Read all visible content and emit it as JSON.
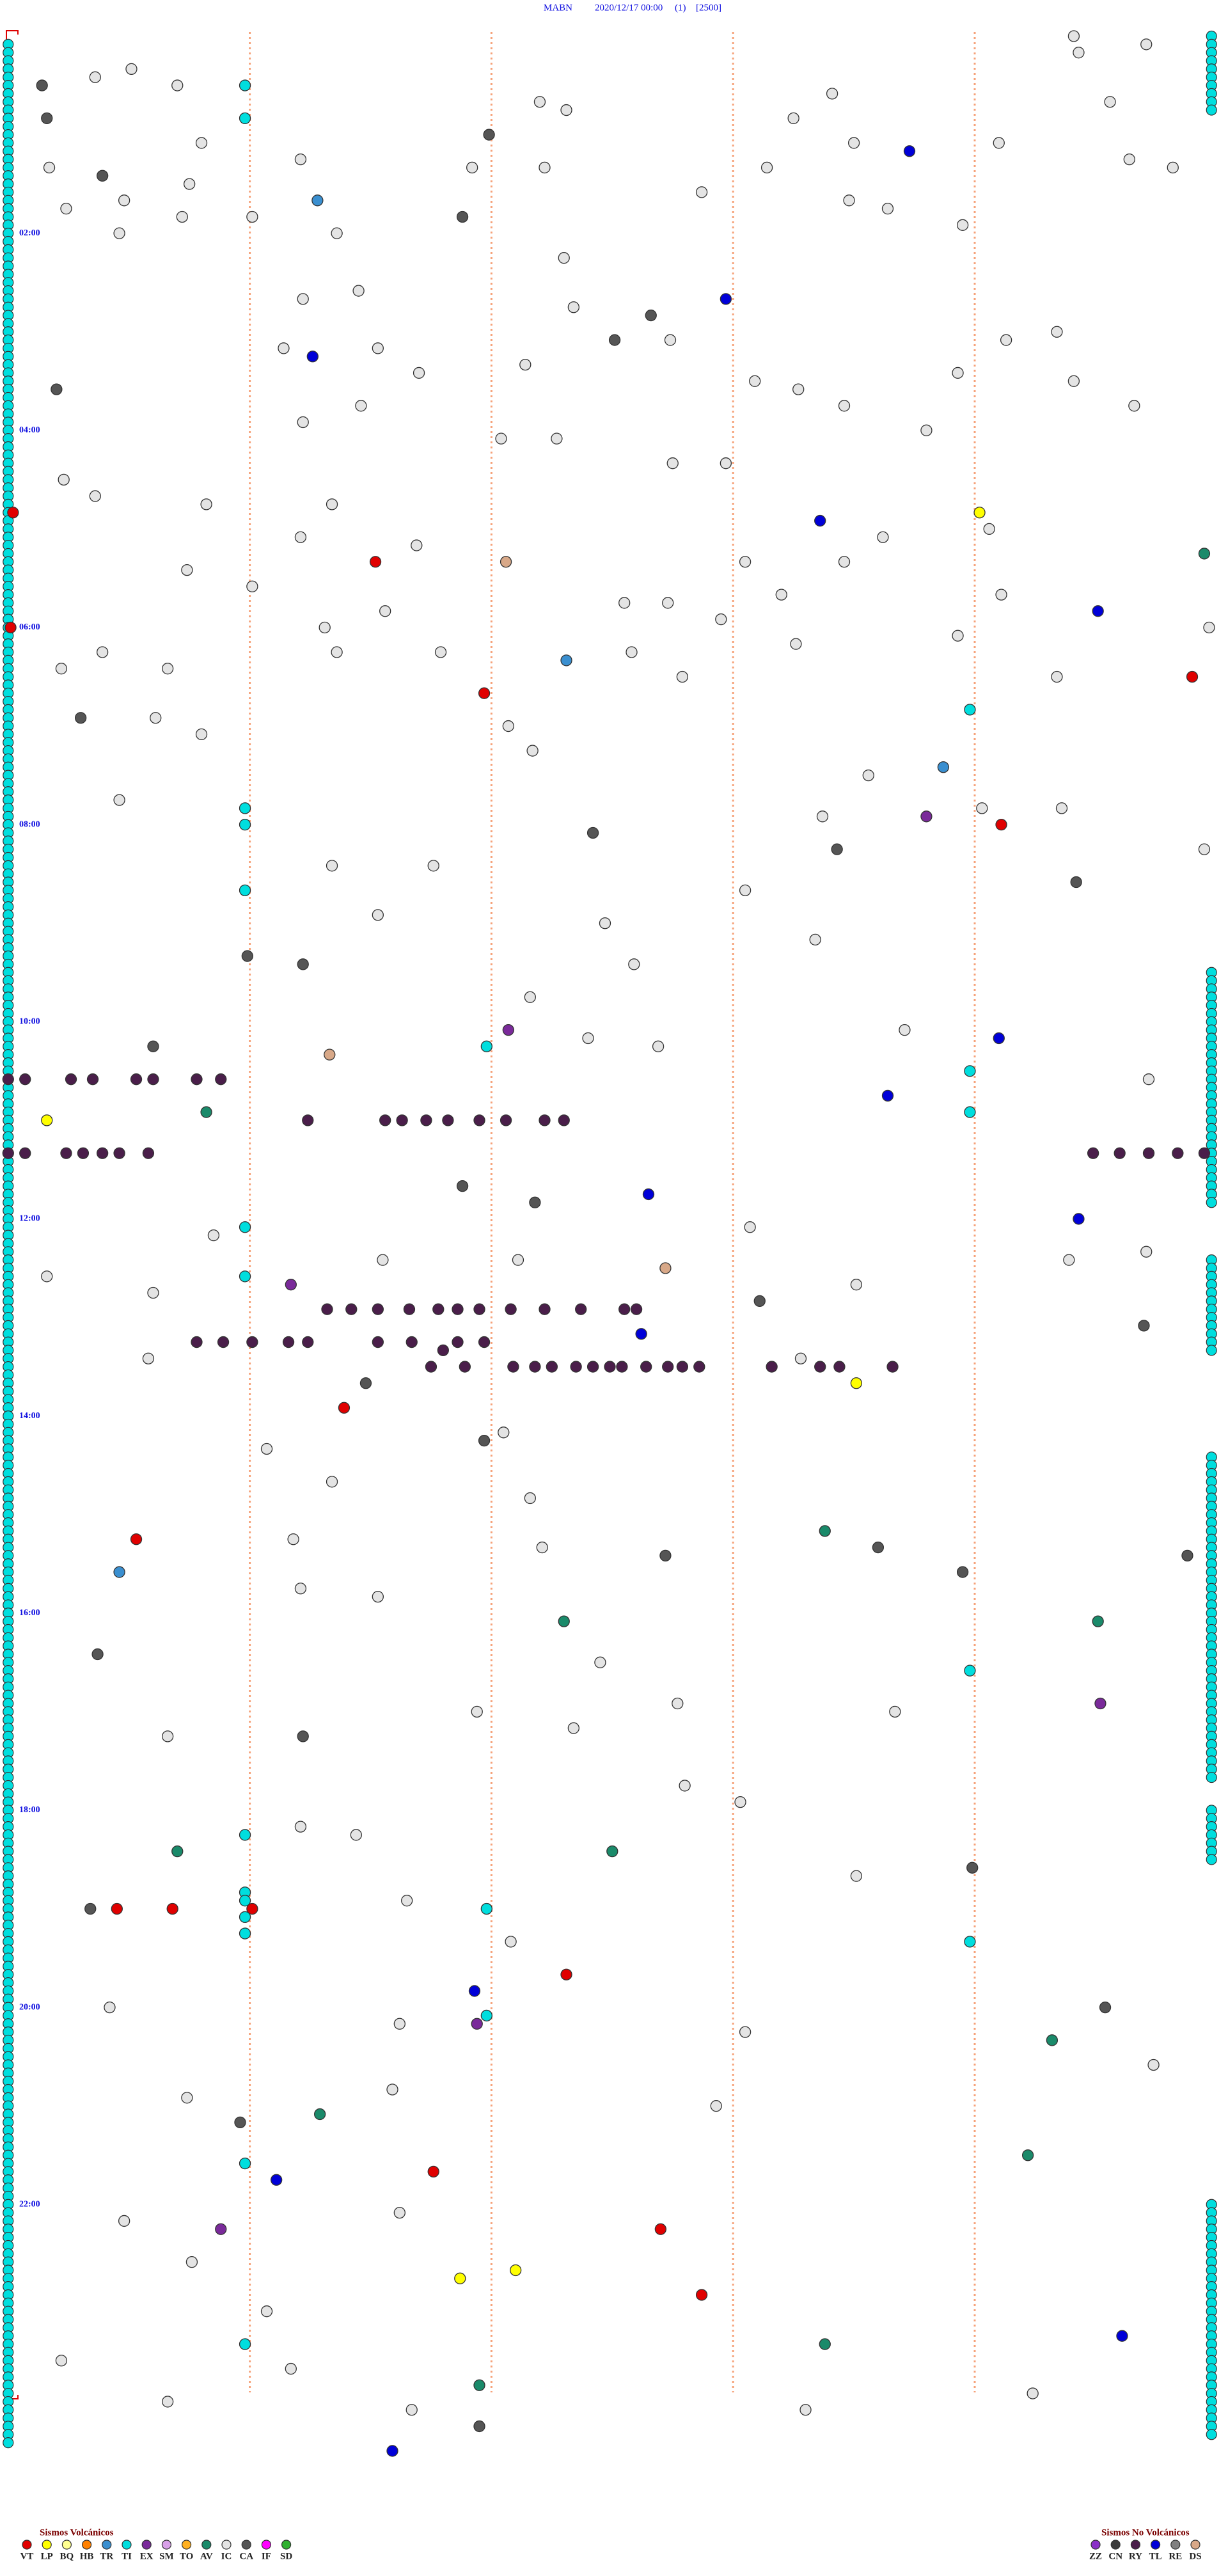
{
  "header": {
    "station": "MABN",
    "datetime": "2020/12/17 00:00",
    "channel": "(1)",
    "gain": "[2500]"
  },
  "time_labels": [
    {
      "row": 24,
      "label": "02:00"
    },
    {
      "row": 48,
      "label": "04:00"
    },
    {
      "row": 72,
      "label": "06:00"
    },
    {
      "row": 96,
      "label": "08:00"
    },
    {
      "row": 120,
      "label": "10:00"
    },
    {
      "row": 144,
      "label": "12:00"
    },
    {
      "row": 168,
      "label": "14:00"
    },
    {
      "row": 192,
      "label": "16:00"
    },
    {
      "row": 216,
      "label": "18:00"
    },
    {
      "row": 240,
      "label": "20:00"
    },
    {
      "row": 264,
      "label": "22:00"
    }
  ],
  "legend_volcanic": {
    "title": "Sismos Volcánicos",
    "items": [
      {
        "code": "VT",
        "color": "#e00000"
      },
      {
        "code": "LP",
        "color": "#ffff00"
      },
      {
        "code": "BQ",
        "color": "#ffff90"
      },
      {
        "code": "HB",
        "color": "#ff8000"
      },
      {
        "code": "TR",
        "color": "#3a8fd0"
      },
      {
        "code": "TI",
        "color": "#00dede"
      },
      {
        "code": "EX",
        "color": "#7a2a9a"
      },
      {
        "code": "SM",
        "color": "#d8a0e8"
      },
      {
        "code": "TO",
        "color": "#ffb020"
      },
      {
        "code": "AV",
        "color": "#1a8a6a"
      },
      {
        "code": "IC",
        "color": "#e4e4e4"
      },
      {
        "code": "CA",
        "color": "#555555"
      },
      {
        "code": "IF",
        "color": "#ff00ff"
      },
      {
        "code": "SD",
        "color": "#30b030"
      }
    ]
  },
  "legend_nonvolcanic": {
    "title": "Sismos No Volcánicos",
    "items": [
      {
        "code": "ZZ",
        "color": "#8a30c8"
      },
      {
        "code": "CN",
        "color": "#3a3a3a"
      },
      {
        "code": "RY",
        "color": "#4a1e4a"
      },
      {
        "code": "TL",
        "color": "#0000d8"
      },
      {
        "code": "RE",
        "color": "#808080"
      },
      {
        "code": "DS",
        "color": "#d8a888"
      }
    ]
  },
  "ti_columns": [
    {
      "minute": 0,
      "rows": [
        [
          1,
          293
        ]
      ]
    },
    {
      "minute": 4.98,
      "rows": [
        [
          0,
          9
        ],
        [
          114,
          142
        ],
        [
          149,
          160
        ],
        [
          173,
          212
        ],
        [
          216,
          222
        ],
        [
          264,
          292
        ]
      ]
    }
  ],
  "events": [
    [
      6,
      0.14,
      "CA"
    ],
    [
      10,
      0.16,
      "CA"
    ],
    [
      12,
      1.99,
      "CA"
    ],
    [
      14,
      3.73,
      "TL"
    ],
    [
      17,
      0.39,
      "CA"
    ],
    [
      20,
      1.28,
      "TR"
    ],
    [
      22,
      1.88,
      "CA"
    ],
    [
      32,
      2.97,
      "TL"
    ],
    [
      34,
      2.66,
      "CA"
    ],
    [
      37,
      2.51,
      "CA"
    ],
    [
      39,
      1.26,
      "TL"
    ],
    [
      43,
      0.2,
      "CA"
    ],
    [
      58,
      0.02,
      "VT"
    ],
    [
      64,
      1.52,
      "VT"
    ],
    [
      64,
      2.06,
      "DS"
    ],
    [
      59,
      3.36,
      "TL"
    ],
    [
      58,
      4.02,
      "LP"
    ],
    [
      63,
      4.95,
      "AV"
    ],
    [
      70,
      4.51,
      "TL"
    ],
    [
      72,
      0.01,
      "VT"
    ],
    [
      78,
      4.9,
      "VT"
    ],
    [
      76,
      2.31,
      "TR"
    ],
    [
      80,
      1.97,
      "VT"
    ],
    [
      83,
      0.3,
      "CA"
    ],
    [
      89,
      3.87,
      "TR"
    ],
    [
      95,
      3.8,
      "EX"
    ],
    [
      96,
      4.11,
      "VT"
    ],
    [
      97,
      2.42,
      "CA"
    ],
    [
      99,
      3.43,
      "CA"
    ],
    [
      103,
      4.42,
      "CA"
    ],
    [
      112,
      0.99,
      "CA"
    ],
    [
      113,
      1.22,
      "CA"
    ],
    [
      121,
      2.07,
      "EX"
    ],
    [
      124,
      1.33,
      "DS"
    ],
    [
      122,
      4.1,
      "TL"
    ],
    [
      123,
      0.6,
      "CA"
    ],
    [
      129,
      3.64,
      "TL"
    ],
    [
      131,
      0.82,
      "AV"
    ],
    [
      132,
      0.16,
      "LP"
    ],
    [
      141,
      2.65,
      "TL"
    ],
    [
      142,
      2.18,
      "CA"
    ],
    [
      140,
      1.88,
      "CA"
    ],
    [
      144,
      4.43,
      "TL"
    ],
    [
      150,
      2.72,
      "DS"
    ],
    [
      152,
      1.17,
      "EX"
    ],
    [
      154,
      3.11,
      "CA"
    ],
    [
      158,
      2.62,
      "TL"
    ],
    [
      157,
      4.7,
      "CA"
    ],
    [
      164,
      1.48,
      "CA"
    ],
    [
      164,
      3.51,
      "LP"
    ],
    [
      167,
      1.39,
      "VT"
    ],
    [
      171,
      1.97,
      "CA"
    ],
    [
      183,
      0.53,
      "VT"
    ],
    [
      187,
      0.46,
      "TR"
    ],
    [
      185,
      2.72,
      "CA"
    ],
    [
      182,
      3.38,
      "AV"
    ],
    [
      184,
      3.6,
      "CA"
    ],
    [
      187,
      3.95,
      "CA"
    ],
    [
      185,
      4.88,
      "CA"
    ],
    [
      193,
      2.3,
      "AV"
    ],
    [
      193,
      4.51,
      "AV"
    ],
    [
      197,
      0.37,
      "CA"
    ],
    [
      203,
      4.52,
      "EX"
    ],
    [
      207,
      1.22,
      "CA"
    ],
    [
      221,
      0.7,
      "AV"
    ],
    [
      221,
      2.5,
      "AV"
    ],
    [
      223,
      3.99,
      "CA"
    ],
    [
      228,
      0.34,
      "CA"
    ],
    [
      228,
      0.45,
      "VT"
    ],
    [
      228,
      0.68,
      "VT"
    ],
    [
      228,
      1.01,
      "VT"
    ],
    [
      236,
      2.31,
      "VT"
    ],
    [
      238,
      1.93,
      "TL"
    ],
    [
      242,
      1.94,
      "EX"
    ],
    [
      240,
      4.54,
      "CA"
    ],
    [
      244,
      4.32,
      "AV"
    ],
    [
      253,
      1.29,
      "AV"
    ],
    [
      254,
      0.96,
      "CA"
    ],
    [
      258,
      4.22,
      "AV"
    ],
    [
      260,
      1.76,
      "VT"
    ],
    [
      261,
      1.11,
      "TL"
    ],
    [
      267,
      0.88,
      "EX"
    ],
    [
      267,
      2.7,
      "VT"
    ],
    [
      273,
      1.87,
      "LP"
    ],
    [
      272,
      2.1,
      "LP"
    ],
    [
      275,
      2.87,
      "VT"
    ],
    [
      281,
      3.38,
      "AV"
    ],
    [
      280,
      4.61,
      "TL"
    ],
    [
      286,
      1.95,
      "AV"
    ],
    [
      291,
      1.95,
      "CA"
    ],
    [
      294,
      1.59,
      "TL"
    ],
    [
      127,
      0,
      "RY"
    ],
    [
      127,
      0.07,
      "RY"
    ],
    [
      127,
      0.26,
      "RY"
    ],
    [
      127,
      0.35,
      "RY"
    ],
    [
      127,
      0.53,
      "RY"
    ],
    [
      127,
      0.6,
      "RY"
    ],
    [
      127,
      0.78,
      "RY"
    ],
    [
      127,
      0.88,
      "RY"
    ],
    [
      132,
      1.24,
      "RY"
    ],
    [
      132,
      1.56,
      "RY"
    ],
    [
      132,
      1.63,
      "RY"
    ],
    [
      132,
      1.73,
      "RY"
    ],
    [
      132,
      1.82,
      "RY"
    ],
    [
      132,
      1.95,
      "RY"
    ],
    [
      132,
      2.06,
      "RY"
    ],
    [
      132,
      2.22,
      "RY"
    ],
    [
      132,
      2.3,
      "RY"
    ],
    [
      136,
      0,
      "RY"
    ],
    [
      136,
      0.07,
      "RY"
    ],
    [
      136,
      0.24,
      "RY"
    ],
    [
      136,
      0.31,
      "RY"
    ],
    [
      136,
      0.39,
      "RY"
    ],
    [
      136,
      0.46,
      "RY"
    ],
    [
      136,
      0.58,
      "RY"
    ],
    [
      136,
      4.49,
      "RY"
    ],
    [
      136,
      4.6,
      "RY"
    ],
    [
      136,
      4.72,
      "RY"
    ],
    [
      136,
      4.84,
      "RY"
    ],
    [
      136,
      4.95,
      "RY"
    ],
    [
      155,
      1.32,
      "RY"
    ],
    [
      155,
      1.42,
      "RY"
    ],
    [
      155,
      1.53,
      "RY"
    ],
    [
      155,
      1.66,
      "RY"
    ],
    [
      155,
      1.78,
      "RY"
    ],
    [
      155,
      1.86,
      "RY"
    ],
    [
      155,
      1.95,
      "RY"
    ],
    [
      155,
      2.08,
      "RY"
    ],
    [
      155,
      2.22,
      "RY"
    ],
    [
      155,
      2.37,
      "RY"
    ],
    [
      155,
      2.55,
      "RY"
    ],
    [
      155,
      2.6,
      "RY"
    ],
    [
      159,
      0.78,
      "RY"
    ],
    [
      159,
      0.89,
      "RY"
    ],
    [
      159,
      1.01,
      "RY"
    ],
    [
      159,
      1.16,
      "RY"
    ],
    [
      159,
      1.24,
      "RY"
    ],
    [
      159,
      1.53,
      "RY"
    ],
    [
      159,
      1.67,
      "RY"
    ],
    [
      159,
      1.86,
      "RY"
    ],
    [
      159,
      1.97,
      "RY"
    ],
    [
      160,
      1.8,
      "RY"
    ],
    [
      162,
      1.75,
      "RY"
    ],
    [
      162,
      1.89,
      "RY"
    ],
    [
      162,
      2.09,
      "RY"
    ],
    [
      162,
      2.18,
      "RY"
    ],
    [
      162,
      2.25,
      "RY"
    ],
    [
      162,
      2.35,
      "RY"
    ],
    [
      162,
      2.42,
      "RY"
    ],
    [
      162,
      2.49,
      "RY"
    ],
    [
      162,
      2.54,
      "RY"
    ],
    [
      162,
      2.64,
      "RY"
    ],
    [
      162,
      2.73,
      "RY"
    ],
    [
      162,
      2.79,
      "RY"
    ],
    [
      162,
      2.86,
      "RY"
    ],
    [
      162,
      3.16,
      "RY"
    ],
    [
      162,
      3.36,
      "RY"
    ],
    [
      162,
      3.44,
      "RY"
    ],
    [
      162,
      3.66,
      "RY"
    ],
    [
      6,
      0.98,
      "TI"
    ],
    [
      10,
      0.98,
      "TI"
    ],
    [
      94,
      0.98,
      "TI"
    ],
    [
      96,
      0.98,
      "TI"
    ],
    [
      104,
      0.98,
      "TI"
    ],
    [
      145,
      0.98,
      "TI"
    ],
    [
      151,
      0.98,
      "TI"
    ],
    [
      219,
      0.98,
      "TI"
    ],
    [
      226,
      0.98,
      "TI"
    ],
    [
      227,
      0.98,
      "TI"
    ],
    [
      229,
      0.98,
      "TI"
    ],
    [
      231,
      0.98,
      "TI"
    ],
    [
      259,
      0.98,
      "TI"
    ],
    [
      281,
      0.98,
      "TI"
    ],
    [
      123,
      1.98,
      "TI"
    ],
    [
      228,
      1.98,
      "TI"
    ],
    [
      241,
      1.98,
      "TI"
    ],
    [
      82,
      3.98,
      "TI"
    ],
    [
      126,
      3.98,
      "TI"
    ],
    [
      131,
      3.98,
      "TI"
    ],
    [
      199,
      3.98,
      "TI"
    ],
    [
      232,
      3.98,
      "TI"
    ],
    [
      5,
      0.36,
      "IC"
    ],
    [
      4,
      0.51,
      "IC"
    ],
    [
      6,
      0.7,
      "IC"
    ],
    [
      13,
      0.8,
      "IC"
    ],
    [
      8,
      2.2,
      "IC"
    ],
    [
      9,
      2.31,
      "IC"
    ],
    [
      13,
      3.5,
      "IC"
    ],
    [
      10,
      3.25,
      "IC"
    ],
    [
      7,
      3.41,
      "IC"
    ],
    [
      0,
      4.41,
      "IC"
    ],
    [
      2,
      4.43,
      "IC"
    ],
    [
      1,
      4.71,
      "IC"
    ],
    [
      8,
      4.56,
      "IC"
    ],
    [
      16,
      0.17,
      "IC"
    ],
    [
      18,
      0.75,
      "IC"
    ],
    [
      16,
      1.92,
      "IC"
    ],
    [
      16,
      2.22,
      "IC"
    ],
    [
      21,
      0.24,
      "IC"
    ],
    [
      20,
      0.48,
      "IC"
    ],
    [
      24,
      0.46,
      "IC"
    ],
    [
      22,
      0.72,
      "IC"
    ],
    [
      22,
      1.01,
      "IC"
    ],
    [
      19,
      2.87,
      "IC"
    ],
    [
      16,
      3.14,
      "IC"
    ],
    [
      20,
      3.48,
      "IC"
    ],
    [
      21,
      3.64,
      "IC"
    ],
    [
      23,
      3.95,
      "IC"
    ],
    [
      13,
      4.1,
      "IC"
    ],
    [
      15,
      4.64,
      "IC"
    ],
    [
      16,
      4.82,
      "IC"
    ],
    [
      15,
      1.21,
      "IC"
    ],
    [
      24,
      1.36,
      "IC"
    ],
    [
      32,
      1.22,
      "IC"
    ],
    [
      31,
      1.45,
      "IC"
    ],
    [
      38,
      1.14,
      "IC"
    ],
    [
      38,
      1.53,
      "IC"
    ],
    [
      45,
      1.46,
      "IC"
    ],
    [
      41,
      1.7,
      "IC"
    ],
    [
      47,
      1.22,
      "IC"
    ],
    [
      49,
      2.04,
      "IC"
    ],
    [
      40,
      2.14,
      "IC"
    ],
    [
      49,
      2.27,
      "IC"
    ],
    [
      33,
      2.34,
      "IC"
    ],
    [
      27,
      2.3,
      "IC"
    ],
    [
      37,
      2.74,
      "IC"
    ],
    [
      52,
      2.75,
      "IC"
    ],
    [
      52,
      2.97,
      "IC"
    ],
    [
      42,
      3.09,
      "IC"
    ],
    [
      43,
      3.27,
      "IC"
    ],
    [
      45,
      3.46,
      "IC"
    ],
    [
      48,
      3.8,
      "IC"
    ],
    [
      41,
      3.93,
      "IC"
    ],
    [
      37,
      4.13,
      "IC"
    ],
    [
      36,
      4.34,
      "IC"
    ],
    [
      42,
      4.41,
      "IC"
    ],
    [
      45,
      4.66,
      "IC"
    ],
    [
      54,
      0.23,
      "IC"
    ],
    [
      56,
      0.36,
      "IC"
    ],
    [
      57,
      0.82,
      "IC"
    ],
    [
      61,
      1.21,
      "IC"
    ],
    [
      57,
      1.34,
      "IC"
    ],
    [
      62,
      1.69,
      "IC"
    ],
    [
      65,
      0.74,
      "IC"
    ],
    [
      67,
      1.01,
      "IC"
    ],
    [
      70,
      1.56,
      "IC"
    ],
    [
      72,
      1.31,
      "IC"
    ],
    [
      75,
      0.39,
      "IC"
    ],
    [
      77,
      0.66,
      "IC"
    ],
    [
      77,
      0.22,
      "IC"
    ],
    [
      75,
      1.36,
      "IC"
    ],
    [
      75,
      1.79,
      "IC"
    ],
    [
      69,
      2.55,
      "IC"
    ],
    [
      69,
      2.73,
      "IC"
    ],
    [
      75,
      2.58,
      "IC"
    ],
    [
      78,
      2.79,
      "IC"
    ],
    [
      71,
      2.95,
      "IC"
    ],
    [
      68,
      3.2,
      "IC"
    ],
    [
      74,
      3.26,
      "IC"
    ],
    [
      64,
      3.46,
      "IC"
    ],
    [
      61,
      3.62,
      "IC"
    ],
    [
      73,
      3.93,
      "IC"
    ],
    [
      60,
      4.06,
      "IC"
    ],
    [
      68,
      4.11,
      "IC"
    ],
    [
      78,
      4.34,
      "IC"
    ],
    [
      72,
      4.97,
      "IC"
    ],
    [
      64,
      3.05,
      "IC"
    ],
    [
      83,
      0.61,
      "IC"
    ],
    [
      85,
      0.8,
      "IC"
    ],
    [
      84,
      2.07,
      "IC"
    ],
    [
      87,
      2.17,
      "IC"
    ],
    [
      90,
      3.56,
      "IC"
    ],
    [
      95,
      3.37,
      "IC"
    ],
    [
      94,
      4.03,
      "IC"
    ],
    [
      94,
      4.36,
      "IC"
    ],
    [
      99,
      4.95,
      "IC"
    ],
    [
      93,
      0.46,
      "IC"
    ],
    [
      101,
      1.34,
      "IC"
    ],
    [
      101,
      1.76,
      "IC"
    ],
    [
      107,
      1.53,
      "IC"
    ],
    [
      108,
      2.47,
      "IC"
    ],
    [
      113,
      2.59,
      "IC"
    ],
    [
      104,
      3.05,
      "IC"
    ],
    [
      110,
      3.34,
      "IC"
    ],
    [
      117,
      2.16,
      "IC"
    ],
    [
      122,
      2.4,
      "IC"
    ],
    [
      123,
      2.69,
      "IC"
    ],
    [
      121,
      3.71,
      "IC"
    ],
    [
      127,
      4.72,
      "IC"
    ],
    [
      146,
      0.85,
      "IC"
    ],
    [
      151,
      0.16,
      "IC"
    ],
    [
      153,
      0.6,
      "IC"
    ],
    [
      149,
      1.55,
      "IC"
    ],
    [
      149,
      2.11,
      "IC"
    ],
    [
      145,
      3.07,
      "IC"
    ],
    [
      152,
      3.51,
      "IC"
    ],
    [
      149,
      4.39,
      "IC"
    ],
    [
      148,
      4.71,
      "IC"
    ],
    [
      161,
      0.58,
      "IC"
    ],
    [
      161,
      3.28,
      "IC"
    ],
    [
      172,
      1.07,
      "IC"
    ],
    [
      170,
      2.05,
      "IC"
    ],
    [
      176,
      1.34,
      "IC"
    ],
    [
      178,
      2.16,
      "IC"
    ],
    [
      183,
      1.18,
      "IC"
    ],
    [
      184,
      2.21,
      "IC"
    ],
    [
      189,
      1.21,
      "IC"
    ],
    [
      190,
      1.53,
      "IC"
    ],
    [
      198,
      2.45,
      "IC"
    ],
    [
      204,
      1.94,
      "IC"
    ],
    [
      203,
      2.77,
      "IC"
    ],
    [
      207,
      0.66,
      "IC"
    ],
    [
      206,
      2.34,
      "IC"
    ],
    [
      204,
      3.67,
      "IC"
    ],
    [
      213,
      2.8,
      "IC"
    ],
    [
      215,
      3.03,
      "IC"
    ],
    [
      218,
      1.21,
      "IC"
    ],
    [
      219,
      1.44,
      "IC"
    ],
    [
      224,
      3.51,
      "IC"
    ],
    [
      227,
      1.65,
      "IC"
    ],
    [
      232,
      2.08,
      "IC"
    ],
    [
      240,
      0.42,
      "IC"
    ],
    [
      242,
      1.62,
      "IC"
    ],
    [
      243,
      3.05,
      "IC"
    ],
    [
      247,
      4.74,
      "IC"
    ],
    [
      251,
      0.74,
      "IC"
    ],
    [
      250,
      1.59,
      "IC"
    ],
    [
      252,
      2.93,
      "IC"
    ],
    [
      265,
      1.62,
      "IC"
    ],
    [
      266,
      0.48,
      "IC"
    ],
    [
      271,
      0.76,
      "IC"
    ],
    [
      277,
      1.07,
      "IC"
    ],
    [
      284,
      1.17,
      "IC"
    ],
    [
      283,
      0.22,
      "IC"
    ],
    [
      289,
      1.67,
      "IC"
    ],
    [
      289,
      3.3,
      "IC"
    ],
    [
      288,
      0.66,
      "IC"
    ],
    [
      287,
      4.24,
      "IC"
    ]
  ]
}
